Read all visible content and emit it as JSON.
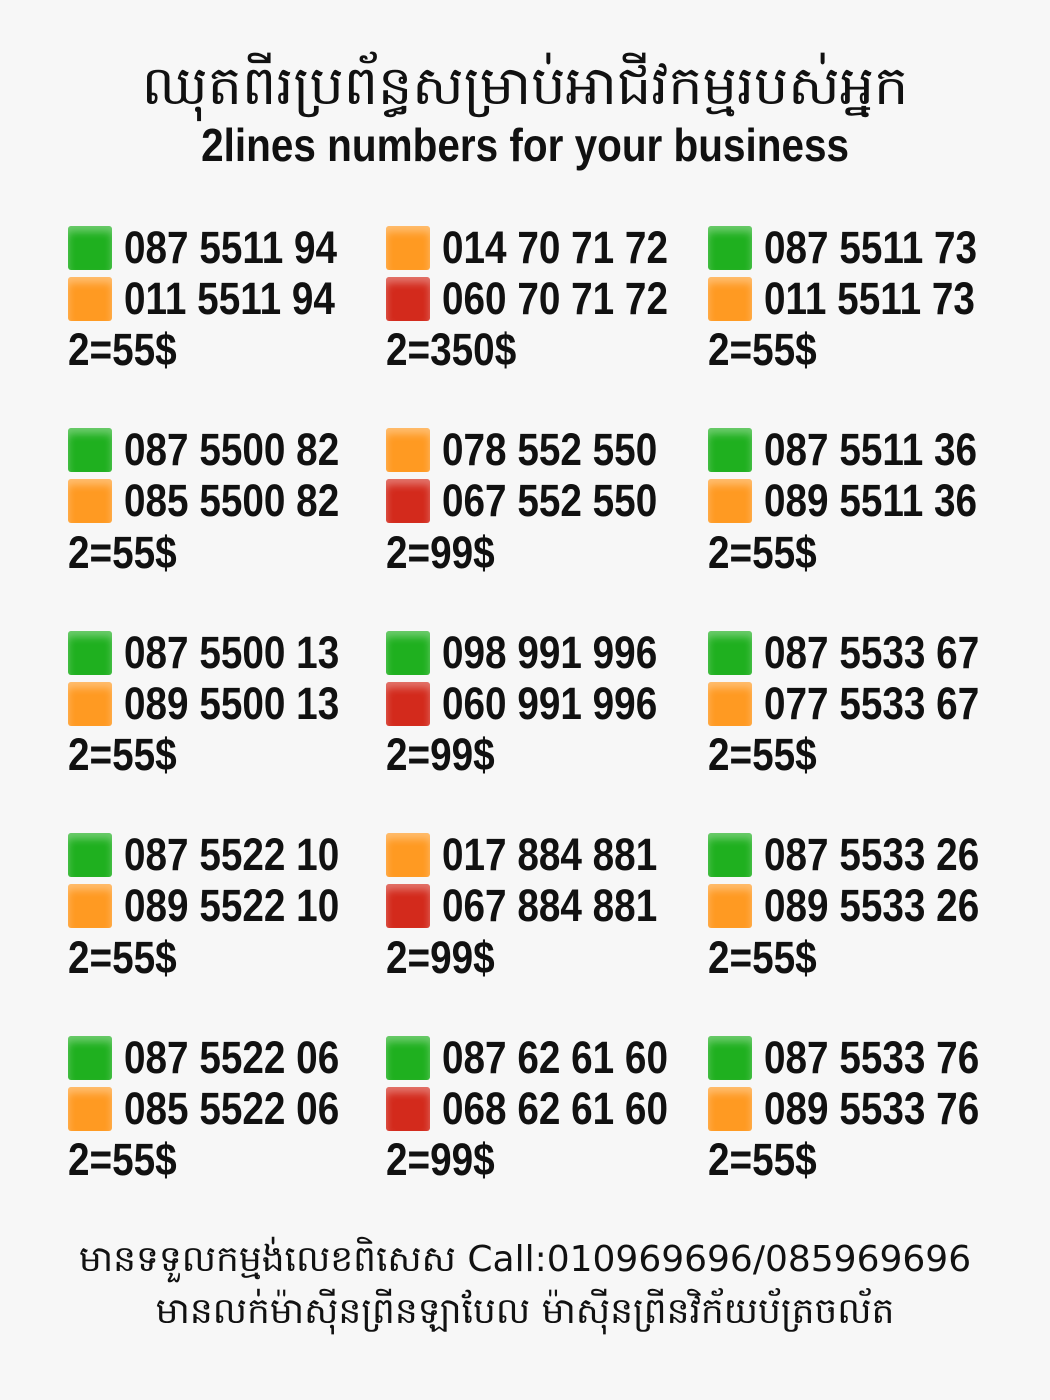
{
  "header": {
    "title_km": "ឈុតពីរប្រព័ន្ធសម្រាប់អាជីវកម្មរបស់អ្នក",
    "title_en": "2lines numbers for your business"
  },
  "colors": {
    "green": "#1fb01f",
    "orange": "#ff9a22",
    "red": "#d32a1c"
  },
  "sets": [
    {
      "lines": [
        {
          "color": "green",
          "number": "087 5511 94"
        },
        {
          "color": "orange",
          "number": "011 5511 94"
        }
      ],
      "price": "2=55$"
    },
    {
      "lines": [
        {
          "color": "orange",
          "number": "014 70 71 72"
        },
        {
          "color": "red",
          "number": "060 70 71 72"
        }
      ],
      "price": "2=350$"
    },
    {
      "lines": [
        {
          "color": "green",
          "number": "087 5511 73"
        },
        {
          "color": "orange",
          "number": "011 5511 73"
        }
      ],
      "price": "2=55$"
    },
    {
      "lines": [
        {
          "color": "green",
          "number": "087 5500 82"
        },
        {
          "color": "orange",
          "number": "085 5500 82"
        }
      ],
      "price": "2=55$"
    },
    {
      "lines": [
        {
          "color": "orange",
          "number": "078 552 550"
        },
        {
          "color": "red",
          "number": "067 552 550"
        }
      ],
      "price": "2=99$"
    },
    {
      "lines": [
        {
          "color": "green",
          "number": "087 5511 36"
        },
        {
          "color": "orange",
          "number": "089 5511 36"
        }
      ],
      "price": "2=55$"
    },
    {
      "lines": [
        {
          "color": "green",
          "number": "087 5500 13"
        },
        {
          "color": "orange",
          "number": "089 5500 13"
        }
      ],
      "price": "2=55$"
    },
    {
      "lines": [
        {
          "color": "green",
          "number": "098 991 996"
        },
        {
          "color": "red",
          "number": "060 991 996"
        }
      ],
      "price": "2=99$"
    },
    {
      "lines": [
        {
          "color": "green",
          "number": "087 5533 67"
        },
        {
          "color": "orange",
          "number": "077 5533 67"
        }
      ],
      "price": "2=55$"
    },
    {
      "lines": [
        {
          "color": "green",
          "number": "087 5522 10"
        },
        {
          "color": "orange",
          "number": "089 5522 10"
        }
      ],
      "price": "2=55$"
    },
    {
      "lines": [
        {
          "color": "orange",
          "number": "017 884 881"
        },
        {
          "color": "red",
          "number": "067 884 881"
        }
      ],
      "price": "2=99$"
    },
    {
      "lines": [
        {
          "color": "green",
          "number": "087 5533 26"
        },
        {
          "color": "orange",
          "number": "089 5533 26"
        }
      ],
      "price": "2=55$"
    },
    {
      "lines": [
        {
          "color": "green",
          "number": "087 5522 06"
        },
        {
          "color": "orange",
          "number": "085 5522 06"
        }
      ],
      "price": "2=55$"
    },
    {
      "lines": [
        {
          "color": "green",
          "number": "087 62 61 60"
        },
        {
          "color": "red",
          "number": "068 62 61 60"
        }
      ],
      "price": "2=99$"
    },
    {
      "lines": [
        {
          "color": "green",
          "number": "087 5533 76"
        },
        {
          "color": "orange",
          "number": "089 5533 76"
        }
      ],
      "price": "2=55$"
    }
  ],
  "footer": {
    "line1": "មានទទួលកម្មង់លេខពិសេស Call:010969696/085969696",
    "line2": "មានលក់ម៉ាស៊ីនព្រីនឡាបែល ម៉ាស៊ីនព្រីនវិក័យប័ត្រចល័ត"
  }
}
